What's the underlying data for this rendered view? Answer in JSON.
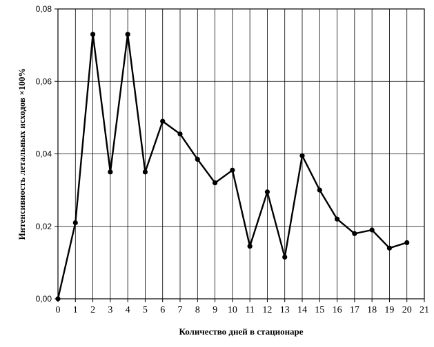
{
  "chart_data": {
    "type": "line",
    "title": "",
    "xlabel": "Количество дней в стационаре",
    "ylabel": "Интенсивность летальных исходов  ×100%",
    "xlim": [
      0,
      21
    ],
    "ylim": [
      0,
      0.08
    ],
    "grid": true,
    "legend": "none",
    "line_color": "#000000",
    "x_ticks": [
      "0",
      "1",
      "2",
      "3",
      "4",
      "5",
      "6",
      "7",
      "8",
      "9",
      "10",
      "11",
      "12",
      "13",
      "14",
      "15",
      "16",
      "17",
      "18",
      "19",
      "20",
      "21"
    ],
    "y_ticks": [
      {
        "value": 0,
        "label": "0,00"
      },
      {
        "value": 0.02,
        "label": "0,02"
      },
      {
        "value": 0.04,
        "label": "0,04"
      },
      {
        "value": 0.06,
        "label": "0,06"
      },
      {
        "value": 0.08,
        "label": "0,08"
      }
    ],
    "x": [
      0,
      1,
      2,
      3,
      4,
      5,
      6,
      7,
      8,
      9,
      10,
      11,
      12,
      13,
      14,
      15,
      16,
      17,
      18,
      19,
      20
    ],
    "values": [
      0.0,
      0.021,
      0.073,
      0.035,
      0.073,
      0.035,
      0.049,
      0.0455,
      0.0385,
      0.032,
      0.0355,
      0.0145,
      0.0295,
      0.0115,
      0.0395,
      0.03,
      0.022,
      0.018,
      0.019,
      0.014,
      0.0155
    ]
  }
}
